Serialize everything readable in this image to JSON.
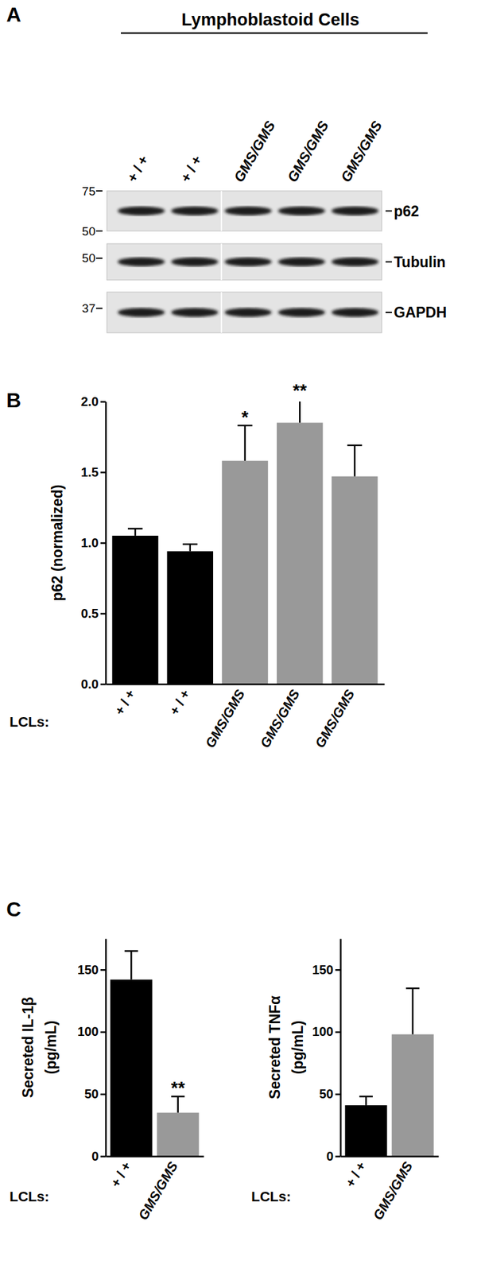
{
  "panel_labels": [
    "A",
    "B",
    "C"
  ],
  "blot": {
    "title": "Lymphoblastoid Cells",
    "lanes": [
      "+ / +",
      "+ / +",
      "GMS/GMS",
      "GMS/GMS",
      "GMS/GMS"
    ],
    "panels": [
      {
        "protein": "p62",
        "markers": [
          75,
          50
        ]
      },
      {
        "protein": "Tubulin",
        "markers": [
          50
        ]
      },
      {
        "protein": "GAPDH",
        "markers": [
          37
        ]
      }
    ]
  },
  "chart_data": [
    {
      "type": "bar",
      "categories": [
        "+ / +",
        "+ / +",
        "GMS/GMS",
        "GMS/GMS",
        "GMS/GMS"
      ],
      "values": [
        1.05,
        0.94,
        1.58,
        1.85,
        1.47
      ],
      "errors": [
        0.05,
        0.05,
        0.25,
        0.17,
        0.22
      ],
      "significance": [
        null,
        null,
        "*",
        "**",
        null
      ],
      "colors": [
        "#000000",
        "#000000",
        "#999999",
        "#999999",
        "#999999"
      ],
      "y_label": [
        "p62 (normalized)"
      ],
      "x_label": "LCLs:",
      "ylim": [
        0,
        2.0
      ],
      "yticks": [
        {
          "value": 0,
          "label": "0.0"
        },
        {
          "value": 0.5,
          "label": "0.5"
        },
        {
          "value": 1,
          "label": "1.0"
        },
        {
          "value": 1.5,
          "label": "1.5"
        },
        {
          "value": 2,
          "label": "2.0"
        }
      ]
    },
    {
      "type": "bar",
      "categories": [
        "+ / +",
        "GMS/GMS"
      ],
      "values": [
        142,
        35
      ],
      "errors": [
        23,
        13
      ],
      "significance": [
        null,
        "**"
      ],
      "colors": [
        "#000000",
        "#999999"
      ],
      "y_label": [
        "Secreted IL-1β",
        "(pg/mL)"
      ],
      "x_label": "LCLs:",
      "ylim": [
        0,
        175
      ],
      "yticks": [
        0,
        50,
        100,
        150
      ]
    },
    {
      "type": "bar",
      "categories": [
        "+ / +",
        "GMS/GMS"
      ],
      "values": [
        41,
        98
      ],
      "errors": [
        7,
        37
      ],
      "colors": [
        "#000000",
        "#999999"
      ],
      "y_label": [
        "Secreted TNFα",
        "(pg/mL)"
      ],
      "x_label": "LCLs:",
      "ylim": [
        0,
        175
      ],
      "yticks": [
        0,
        50,
        100,
        150
      ]
    }
  ]
}
